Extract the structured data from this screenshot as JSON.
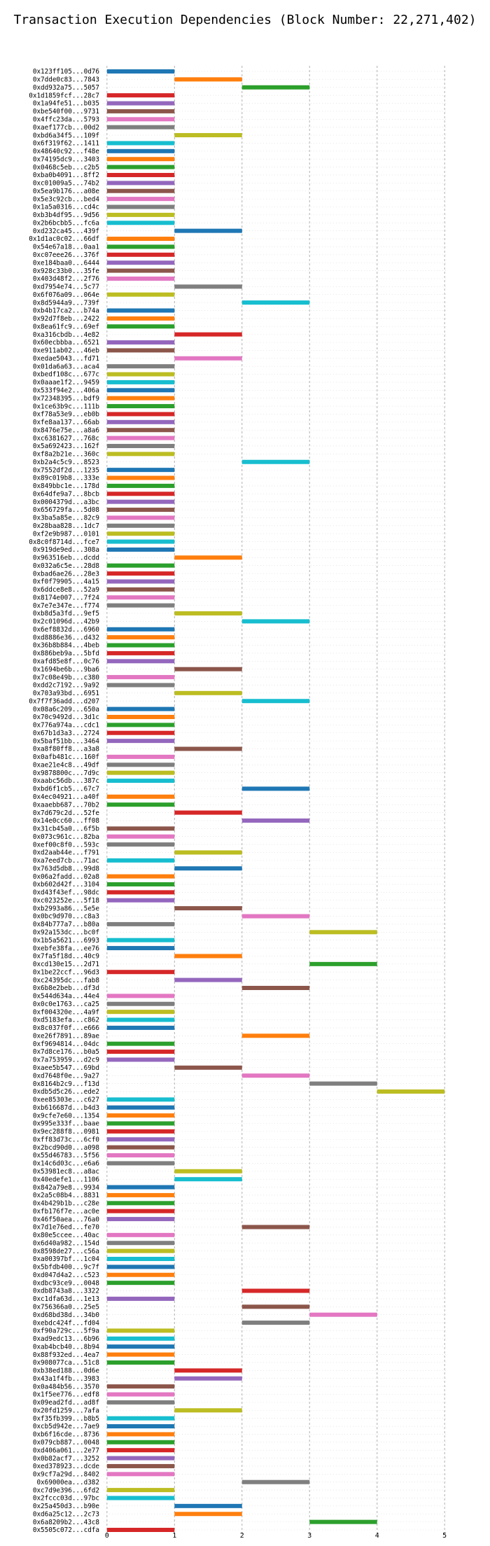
{
  "chart_data": {
    "type": "bar",
    "orientation": "horizontal",
    "title": "Transaction Execution Dependencies (Block Number: 22,271,402)",
    "xlabel": "",
    "ylabel": "",
    "xlim": [
      -0.05,
      5.05
    ],
    "xticks": [
      0,
      1,
      2,
      3,
      4,
      5
    ],
    "grid": true,
    "colors": [
      "#1f77b4",
      "#ff7f0e",
      "#2ca02c",
      "#d62728",
      "#9467bd",
      "#8c564b",
      "#e377c2",
      "#7f7f7f",
      "#bcbd22",
      "#17becf"
    ],
    "transactions": [
      {
        "hash": "0x123ff105...0d76",
        "start": 0,
        "end": 1
      },
      {
        "hash": "0x7dde0c83...7843",
        "start": 1,
        "end": 2
      },
      {
        "hash": "0xdd932a75...5057",
        "start": 2,
        "end": 3
      },
      {
        "hash": "0x1d1859fcf...28c7",
        "start": 0,
        "end": 1
      },
      {
        "hash": "0x1a94fe51...b035",
        "start": 0,
        "end": 1
      },
      {
        "hash": "0xbe540f00...9731",
        "start": 0,
        "end": 1
      },
      {
        "hash": "0x4ffc23da...5793",
        "start": 0,
        "end": 1
      },
      {
        "hash": "0xaef177cb...00d2",
        "start": 0,
        "end": 1
      },
      {
        "hash": "0xbd6a34f5...109f",
        "start": 1,
        "end": 2
      },
      {
        "hash": "0x6f319f62...1411",
        "start": 0,
        "end": 1
      },
      {
        "hash": "0x48640c92...f48e",
        "start": 0,
        "end": 1
      },
      {
        "hash": "0x74195dc9...3403",
        "start": 0,
        "end": 1
      },
      {
        "hash": "0x0468c5eb...c2b5",
        "start": 0,
        "end": 1
      },
      {
        "hash": "0xba0b4091...8ff2",
        "start": 0,
        "end": 1
      },
      {
        "hash": "0xc01009a5...74b2",
        "start": 0,
        "end": 1
      },
      {
        "hash": "0x5ea9b176...a08e",
        "start": 0,
        "end": 1
      },
      {
        "hash": "0x5e3c92cb...bed4",
        "start": 0,
        "end": 1
      },
      {
        "hash": "0x1a5a0316...cd4c",
        "start": 0,
        "end": 1
      },
      {
        "hash": "0xb3b4df95...9d56",
        "start": 0,
        "end": 1
      },
      {
        "hash": "0x2b6bcbb5...fc6a",
        "start": 0,
        "end": 1
      },
      {
        "hash": "0xd232ca45...439f",
        "start": 1,
        "end": 2
      },
      {
        "hash": "0x1d1ac0c02...66df",
        "start": 0,
        "end": 1
      },
      {
        "hash": "0x54e67a18...0aa1",
        "start": 0,
        "end": 1
      },
      {
        "hash": "0xc07eee26...376f",
        "start": 0,
        "end": 1
      },
      {
        "hash": "0xe184baa0...6444",
        "start": 0,
        "end": 1
      },
      {
        "hash": "0x928c33b0...35fe",
        "start": 0,
        "end": 1
      },
      {
        "hash": "0x403d48f2...2f76",
        "start": 0,
        "end": 1
      },
      {
        "hash": "0xd7954e74...5c77",
        "start": 1,
        "end": 2
      },
      {
        "hash": "0x6f076a09...064e",
        "start": 0,
        "end": 1
      },
      {
        "hash": "0x8d5944a9...739f",
        "start": 2,
        "end": 3
      },
      {
        "hash": "0xb4b17ca2...b74a",
        "start": 0,
        "end": 1
      },
      {
        "hash": "0x92d7f8eb...2422",
        "start": 0,
        "end": 1
      },
      {
        "hash": "0x8ea61fc9...69ef",
        "start": 0,
        "end": 1
      },
      {
        "hash": "0xa316cbdb...4e82",
        "start": 1,
        "end": 2
      },
      {
        "hash": "0x60ecbbba...6521",
        "start": 0,
        "end": 1
      },
      {
        "hash": "0xe911ab02...46eb",
        "start": 0,
        "end": 1
      },
      {
        "hash": "0xedae5043...fd71",
        "start": 1,
        "end": 2
      },
      {
        "hash": "0x01da6a63...aca4",
        "start": 0,
        "end": 1
      },
      {
        "hash": "0xbedf108c...677c",
        "start": 0,
        "end": 1
      },
      {
        "hash": "0x0aaae1f2...9459",
        "start": 0,
        "end": 1
      },
      {
        "hash": "0x533f94e2...406a",
        "start": 0,
        "end": 1
      },
      {
        "hash": "0x72348395...bdf9",
        "start": 0,
        "end": 1
      },
      {
        "hash": "0x1ce63b9c...111b",
        "start": 0,
        "end": 1
      },
      {
        "hash": "0xf78a53e9...eb0b",
        "start": 0,
        "end": 1
      },
      {
        "hash": "0xfe8aa137...66ab",
        "start": 0,
        "end": 1
      },
      {
        "hash": "0x8476e75e...a8a6",
        "start": 0,
        "end": 1
      },
      {
        "hash": "0xc6381627...768c",
        "start": 0,
        "end": 1
      },
      {
        "hash": "0x5a692423...162f",
        "start": 0,
        "end": 1
      },
      {
        "hash": "0xf8a2b21e...360c",
        "start": 0,
        "end": 1
      },
      {
        "hash": "0xb2a4c5c9...8523",
        "start": 2,
        "end": 3
      },
      {
        "hash": "0x7552df2d...1235",
        "start": 0,
        "end": 1
      },
      {
        "hash": "0x89c019b8...333e",
        "start": 0,
        "end": 1
      },
      {
        "hash": "0x849bbc1e...178d",
        "start": 0,
        "end": 1
      },
      {
        "hash": "0x64dfe9a7...8bcb",
        "start": 0,
        "end": 1
      },
      {
        "hash": "0x0004379d...a3bc",
        "start": 0,
        "end": 1
      },
      {
        "hash": "0x656729fa...5d08",
        "start": 0,
        "end": 1
      },
      {
        "hash": "0x3ba5a85e...82c9",
        "start": 0,
        "end": 1
      },
      {
        "hash": "0x28baa828...1dc7",
        "start": 0,
        "end": 1
      },
      {
        "hash": "0xf2e9b987...0101",
        "start": 0,
        "end": 1
      },
      {
        "hash": "0x8c0f8714d...fce7",
        "start": 0,
        "end": 1
      },
      {
        "hash": "0x919de9ed...308a",
        "start": 0,
        "end": 1
      },
      {
        "hash": "0x963516eb...dcdd",
        "start": 1,
        "end": 2
      },
      {
        "hash": "0x032a6c5e...28d8",
        "start": 0,
        "end": 1
      },
      {
        "hash": "0xbad6ae26...28e3",
        "start": 0,
        "end": 1
      },
      {
        "hash": "0xf0f79905...4a15",
        "start": 0,
        "end": 1
      },
      {
        "hash": "0x6ddce8e8...52a9",
        "start": 0,
        "end": 1
      },
      {
        "hash": "0x8174e007...7f24",
        "start": 0,
        "end": 1
      },
      {
        "hash": "0x7e7e347e...f774",
        "start": 0,
        "end": 1
      },
      {
        "hash": "0xb8d5a3fd...9ef5",
        "start": 1,
        "end": 2
      },
      {
        "hash": "0x2c01096d...42b9",
        "start": 2,
        "end": 3
      },
      {
        "hash": "0x6ef8832d...6960",
        "start": 0,
        "end": 1
      },
      {
        "hash": "0xd8886e36...d432",
        "start": 0,
        "end": 1
      },
      {
        "hash": "0x36b8b884...4beb",
        "start": 0,
        "end": 1
      },
      {
        "hash": "0x886beb9a...5bfd",
        "start": 0,
        "end": 1
      },
      {
        "hash": "0xafd85e8f...0c76",
        "start": 0,
        "end": 1
      },
      {
        "hash": "0x1694be6b...9ba6",
        "start": 1,
        "end": 2
      },
      {
        "hash": "0x7c08e49b...c380",
        "start": 0,
        "end": 1
      },
      {
        "hash": "0xdd2c7192...9a92",
        "start": 0,
        "end": 1
      },
      {
        "hash": "0x703a93bd...6951",
        "start": 1,
        "end": 2
      },
      {
        "hash": "0x7f7f36add...d207",
        "start": 2,
        "end": 3
      },
      {
        "hash": "0x08a6c209...650a",
        "start": 0,
        "end": 1
      },
      {
        "hash": "0x70c9492d...3d1c",
        "start": 0,
        "end": 1
      },
      {
        "hash": "0x776a974a...cdc1",
        "start": 0,
        "end": 1
      },
      {
        "hash": "0x67b1d3a3...2724",
        "start": 0,
        "end": 1
      },
      {
        "hash": "0x5baf51bb...3464",
        "start": 0,
        "end": 1
      },
      {
        "hash": "0xa8f80ff8...a3a8",
        "start": 1,
        "end": 2
      },
      {
        "hash": "0x0afb481c...160f",
        "start": 0,
        "end": 1
      },
      {
        "hash": "0xae21e4c8...49df",
        "start": 0,
        "end": 1
      },
      {
        "hash": "0x9878800c...7d9c",
        "start": 0,
        "end": 1
      },
      {
        "hash": "0xaabc56db...387c",
        "start": 0,
        "end": 1
      },
      {
        "hash": "0xbd6f1cb5...67c7",
        "start": 2,
        "end": 3
      },
      {
        "hash": "0x4ec04921...a40f",
        "start": 0,
        "end": 1
      },
      {
        "hash": "0xaaebb687...70b2",
        "start": 0,
        "end": 1
      },
      {
        "hash": "0x7d679c2d...52fe",
        "start": 1,
        "end": 2
      },
      {
        "hash": "0x14e0cc60...ff08",
        "start": 2,
        "end": 3
      },
      {
        "hash": "0x31cb45a0...6f5b",
        "start": 0,
        "end": 1
      },
      {
        "hash": "0x073c961c...82ba",
        "start": 0,
        "end": 1
      },
      {
        "hash": "0xef00c8f0...593c",
        "start": 0,
        "end": 1
      },
      {
        "hash": "0xd2aab44e...f791",
        "start": 1,
        "end": 2
      },
      {
        "hash": "0xa7eed7cb...71ac",
        "start": 0,
        "end": 1
      },
      {
        "hash": "0x763d5db8...99d8",
        "start": 1,
        "end": 2
      },
      {
        "hash": "0x06a2fadd...02a8",
        "start": 0,
        "end": 1
      },
      {
        "hash": "0xb602d42f...3104",
        "start": 0,
        "end": 1
      },
      {
        "hash": "0xd43f43ef...98dc",
        "start": 0,
        "end": 1
      },
      {
        "hash": "0xc023252e...5f18",
        "start": 0,
        "end": 1
      },
      {
        "hash": "0xb2993a86...5e5e",
        "start": 1,
        "end": 2
      },
      {
        "hash": "0x0bc9d970...c8a3",
        "start": 2,
        "end": 3
      },
      {
        "hash": "0x84b777a7...b80a",
        "start": 0,
        "end": 1
      },
      {
        "hash": "0x92a153dc...bc0f",
        "start": 3,
        "end": 4
      },
      {
        "hash": "0x1b5a5621...6993",
        "start": 0,
        "end": 1
      },
      {
        "hash": "0xebfe38fa...ee76",
        "start": 0,
        "end": 1
      },
      {
        "hash": "0x7fa5f18d...40c9",
        "start": 1,
        "end": 2
      },
      {
        "hash": "0xcd130e15...2d71",
        "start": 3,
        "end": 4
      },
      {
        "hash": "0x1be22ccf...96d3",
        "start": 0,
        "end": 1
      },
      {
        "hash": "0xc24395dc...fab8",
        "start": 1,
        "end": 2
      },
      {
        "hash": "0x6b8e2beb...df3d",
        "start": 2,
        "end": 3
      },
      {
        "hash": "0x544d634a...44e4",
        "start": 0,
        "end": 1
      },
      {
        "hash": "0x0c0e1763...ca25",
        "start": 0,
        "end": 1
      },
      {
        "hash": "0xf004320e...4a9f",
        "start": 0,
        "end": 1
      },
      {
        "hash": "0xd5183efa...c862",
        "start": 0,
        "end": 1
      },
      {
        "hash": "0x8c037f0f...e666",
        "start": 0,
        "end": 1
      },
      {
        "hash": "0xe26f7891...89ae",
        "start": 2,
        "end": 3
      },
      {
        "hash": "0xf9694814...04dc",
        "start": 0,
        "end": 1
      },
      {
        "hash": "0x7d8ce176...b0a5",
        "start": 0,
        "end": 1
      },
      {
        "hash": "0x7a753959...d2c9",
        "start": 0,
        "end": 1
      },
      {
        "hash": "0xaee5b547...69bd",
        "start": 1,
        "end": 2
      },
      {
        "hash": "0xd7648f0e...9a27",
        "start": 2,
        "end": 3
      },
      {
        "hash": "0x8164b2c9...f13d",
        "start": 3,
        "end": 4
      },
      {
        "hash": "0xdb5d5c26...ede2",
        "start": 4,
        "end": 5
      },
      {
        "hash": "0xee85303e...c627",
        "start": 0,
        "end": 1
      },
      {
        "hash": "0xb616687d...b4d3",
        "start": 0,
        "end": 1
      },
      {
        "hash": "0x9cfe7e60...1354",
        "start": 0,
        "end": 1
      },
      {
        "hash": "0x995e333f...baae",
        "start": 0,
        "end": 1
      },
      {
        "hash": "0x9ec288f8...0981",
        "start": 0,
        "end": 1
      },
      {
        "hash": "0xff83d73c...6cf0",
        "start": 0,
        "end": 1
      },
      {
        "hash": "0x2bcd90d0...a098",
        "start": 0,
        "end": 1
      },
      {
        "hash": "0x55d46783...5f56",
        "start": 0,
        "end": 1
      },
      {
        "hash": "0x14c6d03c...e6a6",
        "start": 0,
        "end": 1
      },
      {
        "hash": "0x53981ec8...a8ac",
        "start": 1,
        "end": 2
      },
      {
        "hash": "0x40edefe1...1106",
        "start": 1,
        "end": 2
      },
      {
        "hash": "0x842a79e8...9934",
        "start": 0,
        "end": 1
      },
      {
        "hash": "0x2a5c08b4...8831",
        "start": 0,
        "end": 1
      },
      {
        "hash": "0x4b429b1b...c28e",
        "start": 0,
        "end": 1
      },
      {
        "hash": "0xfb176f7e...ac0e",
        "start": 0,
        "end": 1
      },
      {
        "hash": "0x46f50aea...76a0",
        "start": 0,
        "end": 1
      },
      {
        "hash": "0x7d1e76ed...fe70",
        "start": 2,
        "end": 3
      },
      {
        "hash": "0x80e5ccee...40ac",
        "start": 0,
        "end": 1
      },
      {
        "hash": "0x6d40a982...154d",
        "start": 0,
        "end": 1
      },
      {
        "hash": "0x8598de27...c56a",
        "start": 0,
        "end": 1
      },
      {
        "hash": "0xa00397bf...1c04",
        "start": 0,
        "end": 1
      },
      {
        "hash": "0x5bfdb400...9c7f",
        "start": 0,
        "end": 1
      },
      {
        "hash": "0xd047d4a2...c523",
        "start": 0,
        "end": 1
      },
      {
        "hash": "0xdbc93ce9...0048",
        "start": 0,
        "end": 1
      },
      {
        "hash": "0xdb8743a8...3322",
        "start": 2,
        "end": 3
      },
      {
        "hash": "0xc1dfa63d...1e13",
        "start": 0,
        "end": 1
      },
      {
        "hash": "0x756366a0...25e5",
        "start": 2,
        "end": 3
      },
      {
        "hash": "0xd68bd38d...34b0",
        "start": 3,
        "end": 4
      },
      {
        "hash": "0xebdc424f...fd04",
        "start": 2,
        "end": 3
      },
      {
        "hash": "0xf90a729c...5f9a",
        "start": 0,
        "end": 1
      },
      {
        "hash": "0xad9edc13...6b96",
        "start": 0,
        "end": 1
      },
      {
        "hash": "0xab4bcb40...8b94",
        "start": 0,
        "end": 1
      },
      {
        "hash": "0x88f932ed...4ea7",
        "start": 0,
        "end": 1
      },
      {
        "hash": "0x908077ca...51c8",
        "start": 0,
        "end": 1
      },
      {
        "hash": "0xb38ed188...0d6e",
        "start": 1,
        "end": 2
      },
      {
        "hash": "0x43a1f4fb...3983",
        "start": 1,
        "end": 2
      },
      {
        "hash": "0x0a484b56...3570",
        "start": 0,
        "end": 1
      },
      {
        "hash": "0x1f5ee776...edf8",
        "start": 0,
        "end": 1
      },
      {
        "hash": "0x09ead2fd...ad8f",
        "start": 0,
        "end": 1
      },
      {
        "hash": "0x20fd1259...7afa",
        "start": 1,
        "end": 2
      },
      {
        "hash": "0xf35fb399...b8b5",
        "start": 0,
        "end": 1
      },
      {
        "hash": "0xcb5d942e...7ae9",
        "start": 0,
        "end": 1
      },
      {
        "hash": "0xb6f16cde...8736",
        "start": 0,
        "end": 1
      },
      {
        "hash": "0x079cb887...0048",
        "start": 0,
        "end": 1
      },
      {
        "hash": "0xd406a061...2e77",
        "start": 0,
        "end": 1
      },
      {
        "hash": "0x0b82acf7...3252",
        "start": 0,
        "end": 1
      },
      {
        "hash": "0xed378923...dcde",
        "start": 0,
        "end": 1
      },
      {
        "hash": "0x9cf7a29d...8402",
        "start": 0,
        "end": 1
      },
      {
        "hash": "0x69000ea...d382",
        "start": 2,
        "end": 3
      },
      {
        "hash": "0xc7d9e396...6fd2",
        "start": 0,
        "end": 1
      },
      {
        "hash": "0x2fccc03d...97bc",
        "start": 0,
        "end": 1
      },
      {
        "hash": "0x25a450d3...b90e",
        "start": 1,
        "end": 2
      },
      {
        "hash": "0xd6a25c12...2c73",
        "start": 1,
        "end": 2
      },
      {
        "hash": "0x6a8209b2...43c8",
        "start": 3,
        "end": 4
      },
      {
        "hash": "0x5505c072...cdfa",
        "start": 0,
        "end": 1
      }
    ]
  }
}
